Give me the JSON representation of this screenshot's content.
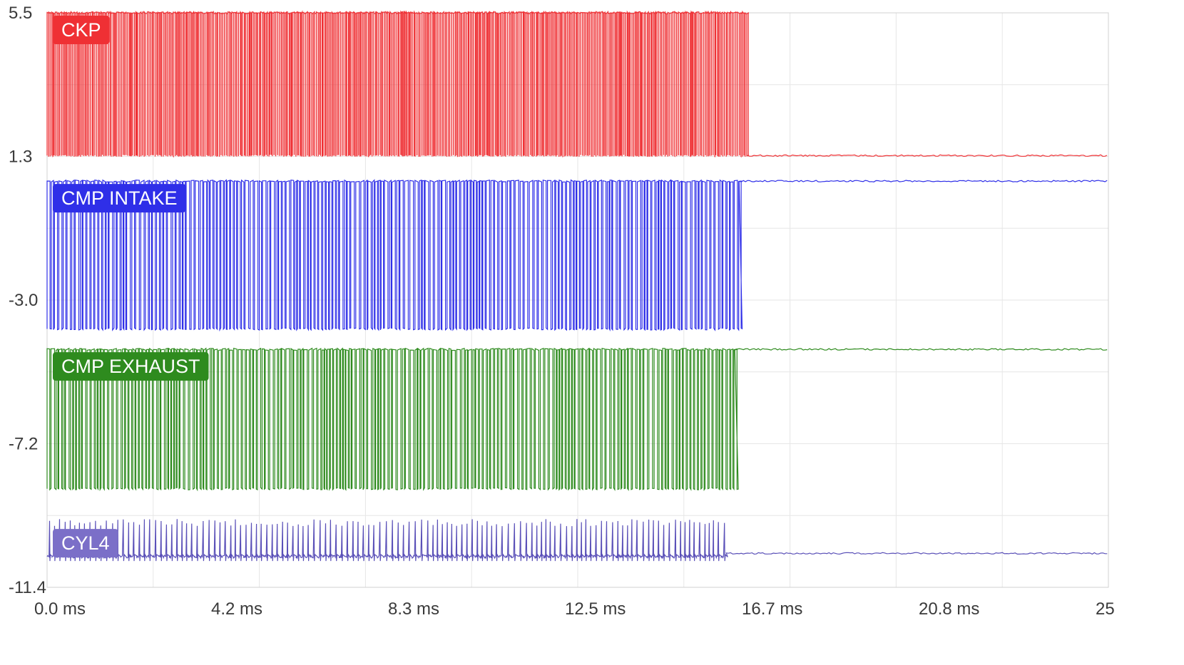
{
  "chart_data": {
    "type": "line",
    "title": "",
    "xlabel": "",
    "ylabel": "",
    "xlim": [
      0,
      25
    ],
    "ylim": [
      -11.4,
      5.5
    ],
    "x_ticks": [
      "0.0 ms",
      "4.2 ms",
      "8.3 ms",
      "12.5 ms",
      "16.7 ms",
      "20.8 ms",
      "25"
    ],
    "y_ticks": [
      "5.5",
      "1.3",
      "-3.0",
      "-7.2",
      "-11.4"
    ],
    "grid": true,
    "legend": "inline labels at top-left of each trace",
    "series": [
      {
        "name": "CKP",
        "color": "#ef3034",
        "label_bg": "#ef3034",
        "style": "square-wave",
        "low": 1.3,
        "high": 5.5,
        "active_until_ms": 16.5,
        "pulse_period_ms": 0.03,
        "duty": 0.95,
        "idle_level": 1.3
      },
      {
        "name": "CMP INTAKE",
        "color": "#2f2fe8",
        "label_bg": "#2f2fe8",
        "style": "square-wave",
        "low": -3.8,
        "high": 0.55,
        "active_until_ms": 16.3,
        "pulse_period_ms": 0.082,
        "duty": 0.7,
        "idle_level": 0.55
      },
      {
        "name": "CMP EXHAUST",
        "color": "#2e8b1e",
        "label_bg": "#2e8b1e",
        "style": "square-wave",
        "low": -8.5,
        "high": -4.4,
        "active_until_ms": 16.2,
        "pulse_period_ms": 0.082,
        "duty": 0.7,
        "idle_level": -4.4
      },
      {
        "name": "CYL4",
        "color": "#5a50b8",
        "label_bg": "#7b6fc8",
        "style": "spikes",
        "base": -10.5,
        "peak": -9.6,
        "active_until_ms": 16.0,
        "pulse_period_ms": 0.12,
        "idle_level": -10.4
      }
    ]
  }
}
